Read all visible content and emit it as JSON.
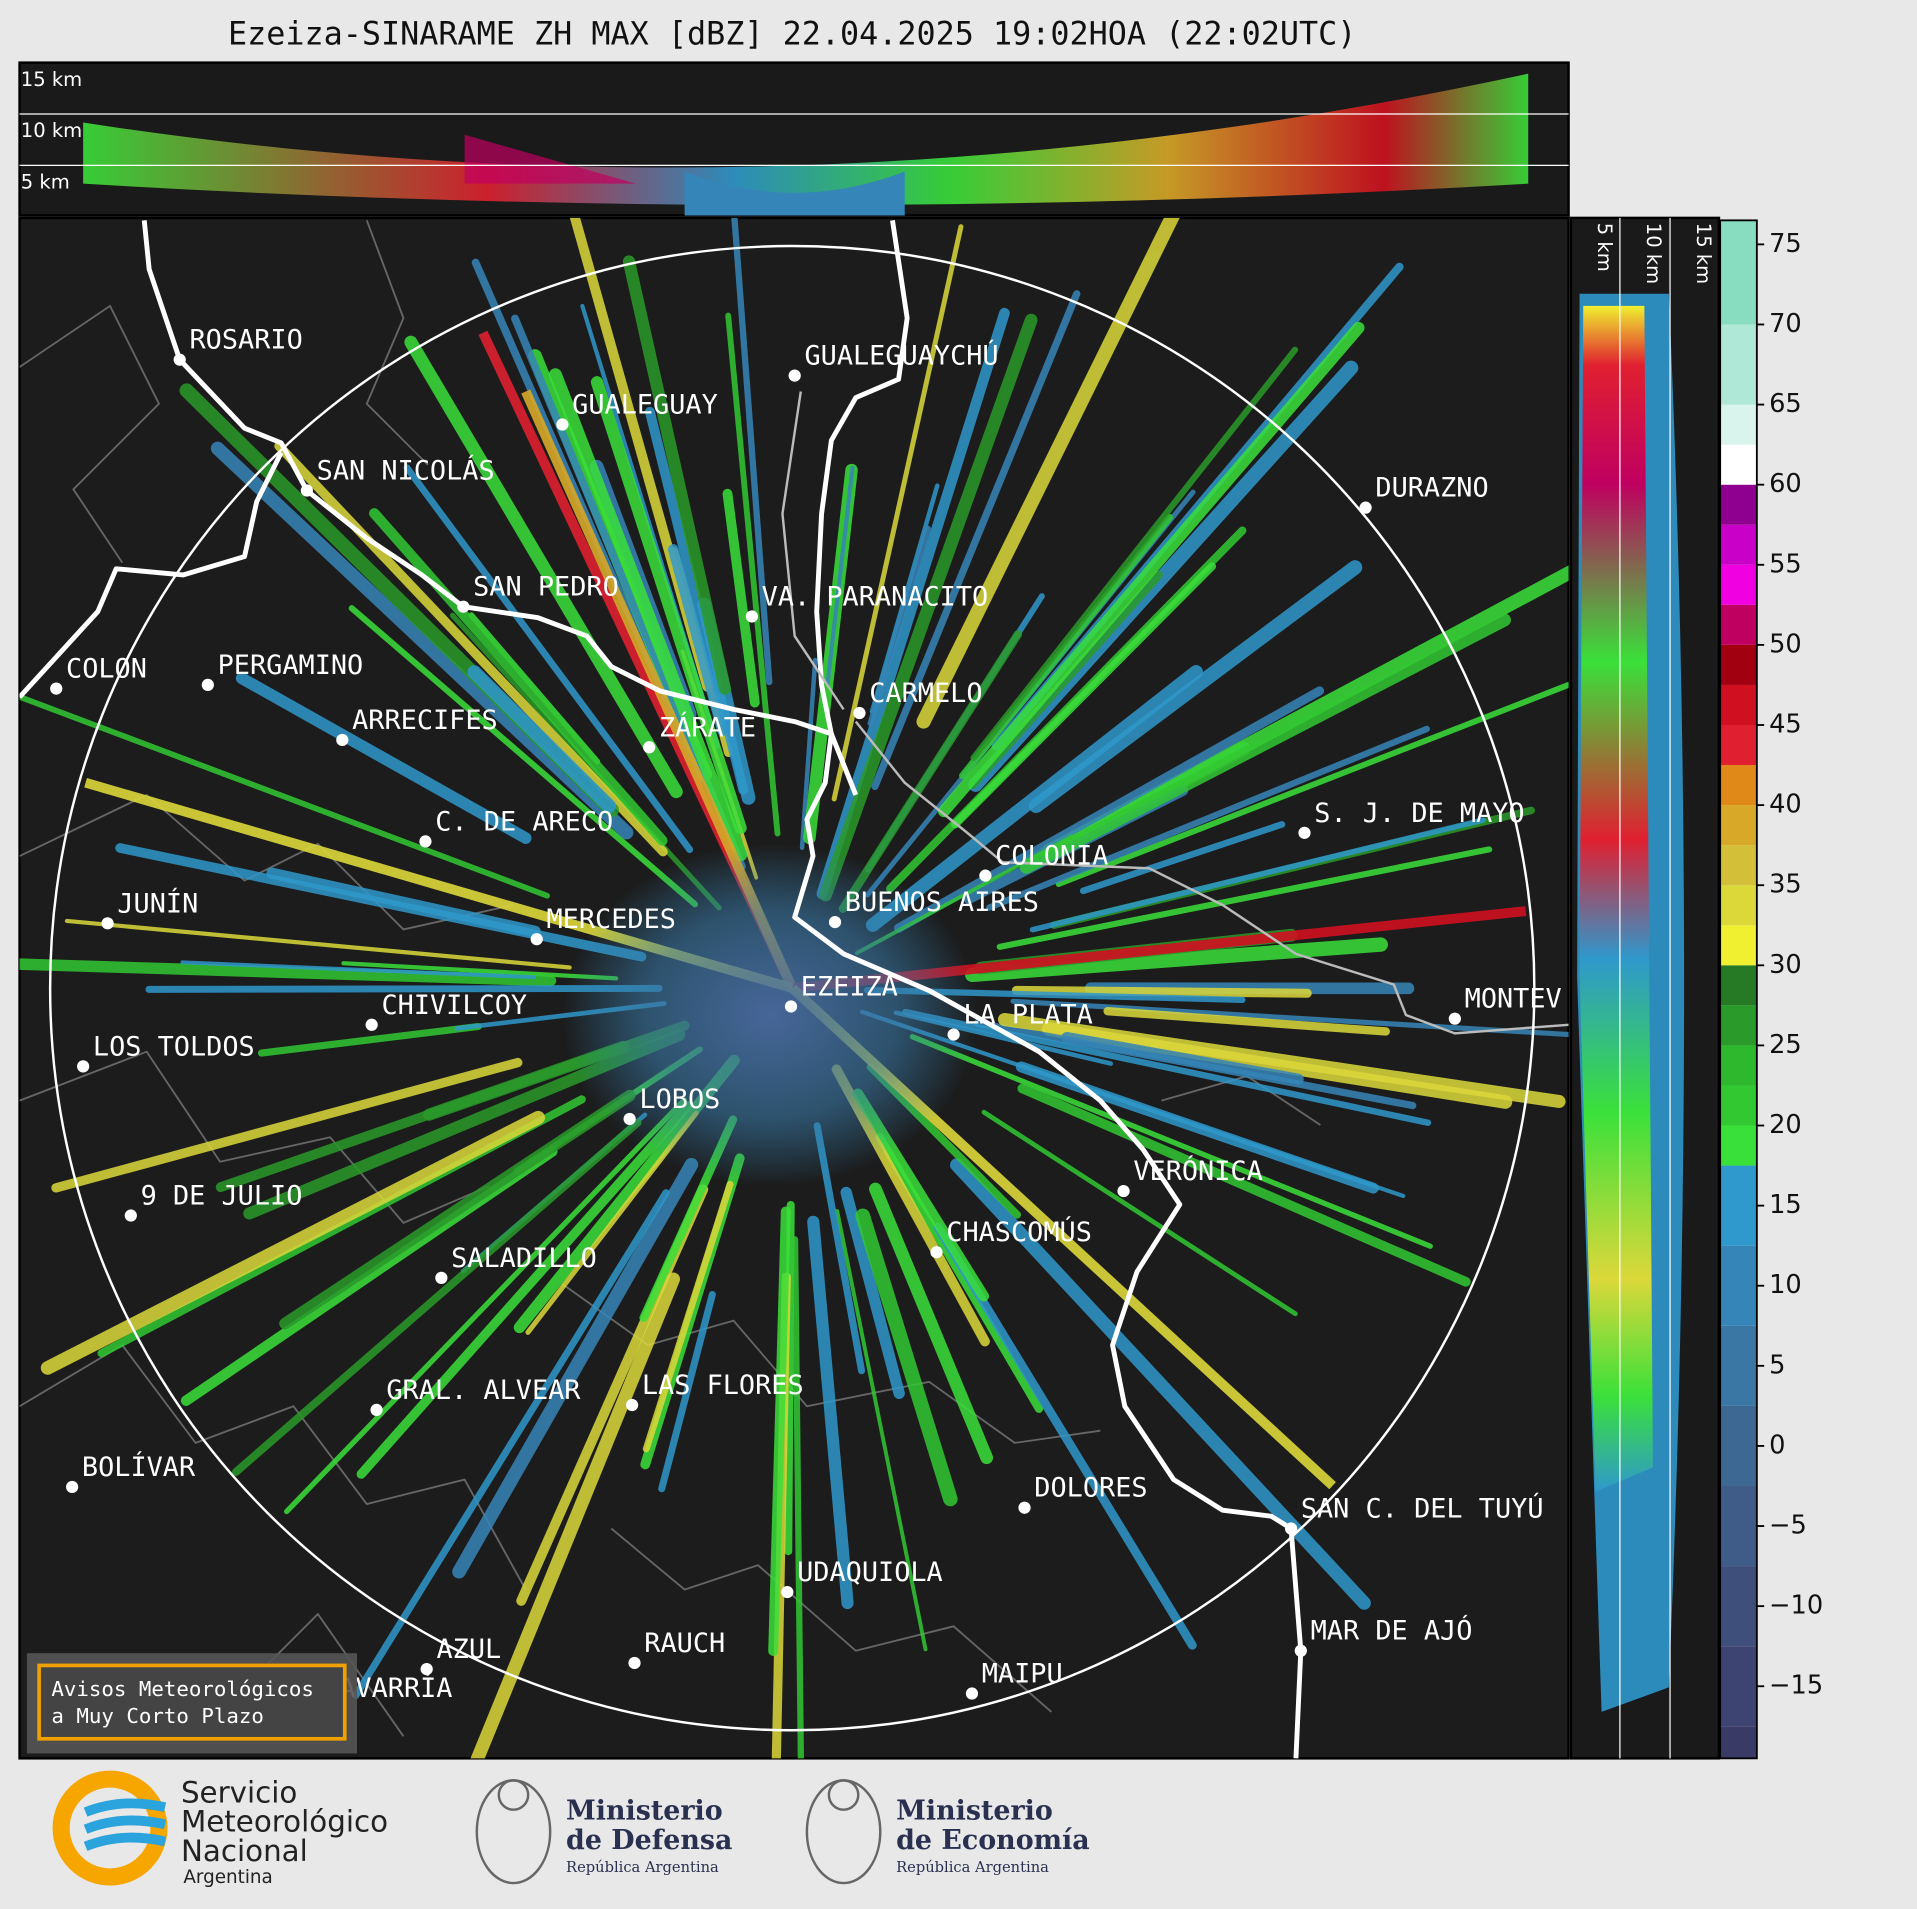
{
  "header": {
    "title": "Ezeiza-SINARAME ZH MAX [dBZ] 22.04.2025 19:02HOA (22:02UTC)"
  },
  "height_labels": {
    "top": [
      "15 km",
      "10 km",
      "5 km"
    ],
    "right": [
      "5 km",
      "10 km",
      "15 km"
    ]
  },
  "cities": [
    "ROSARIO",
    "GUALEGUAYCHÚ",
    "GUALEGUAY",
    "SAN NICOLÁS",
    "DURAZNO",
    "SAN PEDRO",
    "VA. PARANACITO",
    "COLON",
    "PERGAMINO",
    "CARMELO",
    "ARRECIFES",
    "ZÁRATE",
    "C. DE ARECO",
    "S. J. DE MAYO",
    "COLONIA",
    "BUENOS AIRES",
    "JUNÍN",
    "MERCEDES",
    "EZEIZA",
    "MONTEV",
    "CHIVILCOY",
    "LA PLATA",
    "LOS TOLDOS",
    "LOBOS",
    "VERÓNICA",
    "9 DE JULIO",
    "CHASCOMÚS",
    "SALADILLO",
    "GRAL. ALVEAR",
    "LAS FLORES",
    "BOLÍVAR",
    "DOLORES",
    "SAN C. DEL TUYÚ",
    "UDAQUIOLA",
    "MAR DE AJÓ",
    "RAUCH",
    "AZUL",
    "OLAVARRÍA",
    "MAIPU"
  ],
  "colorbar": {
    "lim": [
      -19.5,
      76.5
    ],
    "ticks": [
      {
        "value": -15,
        "label": "−15"
      },
      {
        "value": -10,
        "label": "−10"
      },
      {
        "value": -5,
        "label": "−5"
      },
      0,
      5,
      10,
      15,
      20,
      25,
      30,
      35,
      40,
      45,
      50,
      55,
      60,
      65,
      70,
      75
    ],
    "bands": [
      {
        "from": -19.5,
        "to": -17.5,
        "color": "#3a3a66"
      },
      {
        "from": -17.5,
        "to": -12.5,
        "color": "#3d4472"
      },
      {
        "from": -12.5,
        "to": -7.5,
        "color": "#3f4f7c"
      },
      {
        "from": -7.5,
        "to": -2.5,
        "color": "#3f5b88"
      },
      {
        "from": -2.5,
        "to": 2.5,
        "color": "#3e6894"
      },
      {
        "from": 2.5,
        "to": 7.5,
        "color": "#3a77a4"
      },
      {
        "from": 7.5,
        "to": 12.5,
        "color": "#3585b8"
      },
      {
        "from": 12.5,
        "to": 17.5,
        "color": "#2f98cc"
      },
      {
        "from": 17.5,
        "to": 20,
        "color": "#3ae03a"
      },
      {
        "from": 20,
        "to": 22.5,
        "color": "#32c832"
      },
      {
        "from": 22.5,
        "to": 25,
        "color": "#2db82d"
      },
      {
        "from": 25,
        "to": 27.5,
        "color": "#2a9a2a"
      },
      {
        "from": 27.5,
        "to": 30,
        "color": "#267a26"
      },
      {
        "from": 30,
        "to": 32.5,
        "color": "#f0f030"
      },
      {
        "from": 32.5,
        "to": 35,
        "color": "#dcd83a"
      },
      {
        "from": 35,
        "to": 37.5,
        "color": "#d4c038"
      },
      {
        "from": 37.5,
        "to": 40,
        "color": "#d8a828"
      },
      {
        "from": 40,
        "to": 42.5,
        "color": "#e08818"
      },
      {
        "from": 42.5,
        "to": 45,
        "color": "#e02030"
      },
      {
        "from": 45,
        "to": 47.5,
        "color": "#d01020"
      },
      {
        "from": 47.5,
        "to": 50,
        "color": "#a00010"
      },
      {
        "from": 50,
        "to": 52.5,
        "color": "#c00060"
      },
      {
        "from": 52.5,
        "to": 55,
        "color": "#f000e0"
      },
      {
        "from": 55,
        "to": 57.5,
        "color": "#c800c8"
      },
      {
        "from": 57.5,
        "to": 60,
        "color": "#900090"
      },
      {
        "from": 60,
        "to": 62.5,
        "color": "#ffffff"
      },
      {
        "from": 62.5,
        "to": 65,
        "color": "#d8f4ec"
      },
      {
        "from": 65,
        "to": 70,
        "color": "#b0e8d8"
      },
      {
        "from": 70,
        "to": 76.5,
        "color": "#88dcc0"
      }
    ]
  },
  "warning_box": [
    "Avisos Meteorológicos",
    "a Muy Corto Plazo"
  ],
  "logos": {
    "smn": [
      "Servicio",
      "Meteorológico",
      "Nacional",
      "Argentina"
    ],
    "defensa": [
      "Ministerio",
      "de Defensa",
      "República Argentina"
    ],
    "economia": [
      "Ministerio",
      "de Economía",
      "República Argentina"
    ]
  }
}
